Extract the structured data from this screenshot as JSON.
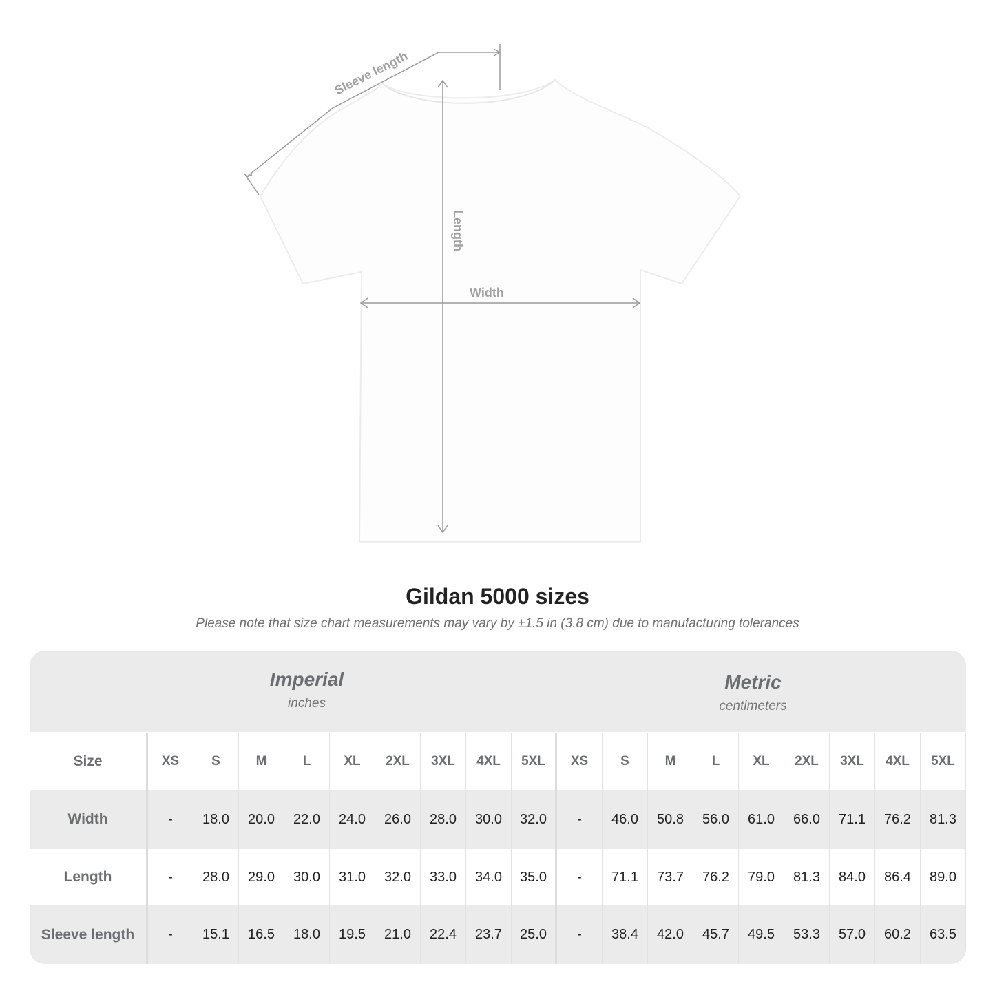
{
  "diagram": {
    "labels": {
      "sleeve": "Sleeve length",
      "length": "Length",
      "width": "Width"
    }
  },
  "title": "Gildan 5000 sizes",
  "subtitle": "Please note that size chart measurements may vary by ±1.5 in (3.8 cm) due to manufacturing tolerances",
  "table": {
    "imperial": {
      "name": "Imperial",
      "unit": "inches"
    },
    "metric": {
      "name": "Metric",
      "unit": "centimeters"
    },
    "size_label": "Size",
    "sizes": [
      "XS",
      "S",
      "M",
      "L",
      "XL",
      "2XL",
      "3XL",
      "4XL",
      "5XL"
    ],
    "rows": [
      {
        "label": "Width",
        "imperial": [
          "-",
          "18.0",
          "20.0",
          "22.0",
          "24.0",
          "26.0",
          "28.0",
          "30.0",
          "32.0"
        ],
        "metric": [
          "-",
          "46.0",
          "50.8",
          "56.0",
          "61.0",
          "66.0",
          "71.1",
          "76.2",
          "81.3"
        ]
      },
      {
        "label": "Length",
        "imperial": [
          "-",
          "28.0",
          "29.0",
          "30.0",
          "31.0",
          "32.0",
          "33.0",
          "34.0",
          "35.0"
        ],
        "metric": [
          "-",
          "71.1",
          "73.7",
          "76.2",
          "79.0",
          "81.3",
          "84.0",
          "86.4",
          "89.0"
        ]
      },
      {
        "label": "Sleeve length",
        "imperial": [
          "-",
          "15.1",
          "16.5",
          "18.0",
          "19.5",
          "21.0",
          "22.4",
          "23.7",
          "25.0"
        ],
        "metric": [
          "-",
          "38.4",
          "42.0",
          "45.7",
          "49.5",
          "53.3",
          "57.0",
          "60.2",
          "63.5"
        ]
      }
    ]
  },
  "colors": {
    "band": "#ebebeb",
    "header_text": "#6b6e70",
    "measure_line": "#9a9a9a"
  }
}
